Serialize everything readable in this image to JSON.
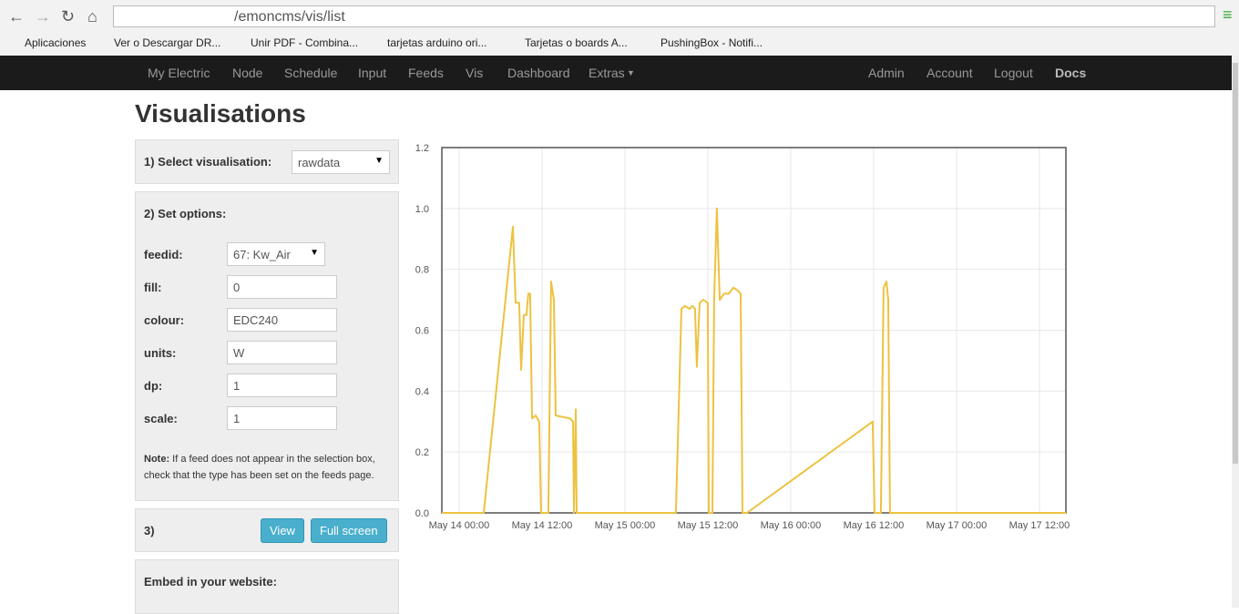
{
  "browser": {
    "url": "/emoncms/vis/list",
    "bookmarks": [
      "Aplicaciones",
      "Ver o Descargar DR...",
      "Unir PDF - Combina...",
      "tarjetas arduino ori...",
      "Tarjetas o boards A...",
      "PushingBox - Notifi..."
    ]
  },
  "nav": {
    "left": [
      "My Electric",
      "Node",
      "Schedule",
      "Input",
      "Feeds",
      "Vis",
      "Dashboard",
      "Extras"
    ],
    "right": [
      "Admin",
      "Account",
      "Logout",
      "Docs"
    ]
  },
  "page_title": "Visualisations",
  "panel": {
    "select_label": "1) Select visualisation:",
    "select_value": "rawdata",
    "options_title": "2) Set options:",
    "fields": [
      {
        "label": "feedid:",
        "value": "67: Kw_Air"
      },
      {
        "label": "fill:",
        "value": "0"
      },
      {
        "label": "colour:",
        "value": "EDC240"
      },
      {
        "label": "units:",
        "value": "W"
      },
      {
        "label": "dp:",
        "value": "1"
      },
      {
        "label": "scale:",
        "value": "1"
      }
    ],
    "note_bold": "Note:",
    "note_text": "If a feed does not appear in the selection box, check that the type has been set on the feeds page.",
    "step3": "3)",
    "buttons": [
      "View",
      "Full screen"
    ],
    "embed": "Embed in your website:"
  },
  "chart_data": {
    "type": "line",
    "grid": true,
    "x": [
      "May 13 21:30",
      "May 14 03:34",
      "May 14 07:47",
      "May 14 08:11",
      "May 14 08:42",
      "May 14 08:58",
      "May 14 09:22",
      "May 14 09:45",
      "May 14 10:01",
      "May 14 10:17",
      "May 14 10:33",
      "May 14 11:05",
      "May 14 11:36",
      "May 14 11:52",
      "May 14 12:55",
      "May 14 13:19",
      "May 14 13:43",
      "May 14 13:59",
      "May 14 16:05",
      "May 14 16:29",
      "May 14 16:37",
      "May 14 16:53",
      "May 14 17:01",
      "May 15 07:23",
      "May 15 08:11",
      "May 15 08:42",
      "May 15 09:22",
      "May 15 09:45",
      "May 15 10:09",
      "May 15 10:25",
      "May 15 10:49",
      "May 15 11:20",
      "May 15 12:00",
      "May 15 12:08",
      "May 15 12:40",
      "May 15 12:55",
      "May 15 13:19",
      "May 15 13:43",
      "May 15 14:22",
      "May 15 15:02",
      "May 15 15:42",
      "May 15 16:21",
      "May 15 16:45",
      "May 15 17:01",
      "May 15 17:40",
      "May 16 11:52",
      "May 16 12:08",
      "May 16 13:03",
      "May 16 13:27",
      "May 16 13:51",
      "May 16 14:07",
      "May 16 14:22",
      "May 17 15:50"
    ],
    "series": [
      {
        "color": "#EDC240",
        "values": [
          0,
          0,
          0.94,
          0.69,
          0.69,
          0.47,
          0.65,
          0.65,
          0.72,
          0.72,
          0.31,
          0.32,
          0.3,
          0,
          0,
          0.76,
          0.7,
          0.32,
          0.31,
          0.3,
          0,
          0.34,
          0,
          0,
          0.67,
          0.68,
          0.67,
          0.68,
          0.67,
          0.48,
          0.69,
          0.7,
          0.69,
          0,
          0,
          0.7,
          1.0,
          0.7,
          0.72,
          0.72,
          0.74,
          0.73,
          0.72,
          0,
          0,
          0.3,
          0,
          0,
          0.74,
          0.76,
          0.7,
          0,
          0
        ]
      }
    ],
    "xlim": [
      "May 13 21:30",
      "May 17 15:50"
    ],
    "xticks": [
      "May 14 00:00",
      "May 14 12:00",
      "May 15 00:00",
      "May 15 12:00",
      "May 16 00:00",
      "May 16 12:00",
      "May 17 00:00",
      "May 17 12:00"
    ],
    "ylim": [
      0,
      1.2
    ],
    "yticks": [
      {
        "value": 0,
        "label": "0.0"
      },
      {
        "value": 0.2,
        "label": "0.2"
      },
      {
        "value": 0.4,
        "label": "0.4"
      },
      {
        "value": 0.6,
        "label": "0.6"
      },
      {
        "value": 0.8,
        "label": "0.8"
      },
      {
        "value": 1.0,
        "label": "1.0"
      },
      {
        "value": 1.2,
        "label": "1.2"
      }
    ]
  }
}
